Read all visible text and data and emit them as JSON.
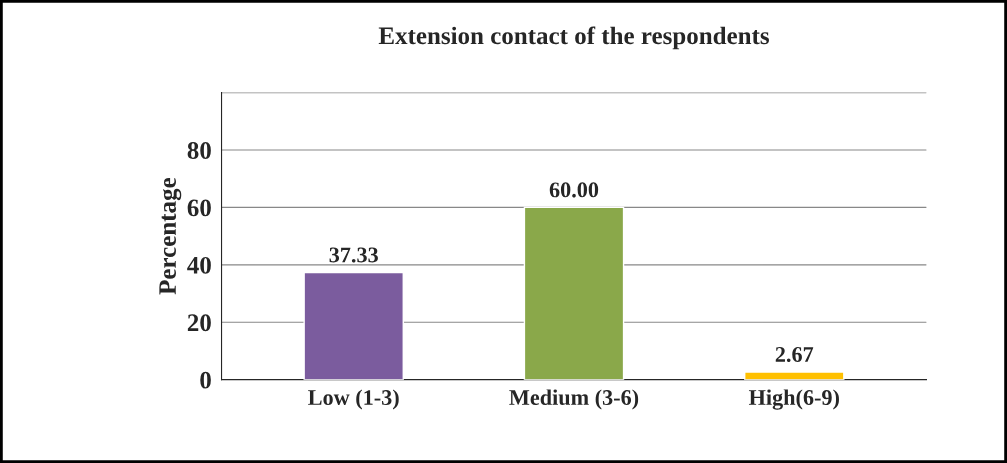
{
  "chart_data": {
    "type": "bar",
    "title": "Extension contact of the respondents",
    "ylabel": "Percentage",
    "categories": [
      "Low (1-3)",
      "Medium (3-6)",
      "High(6-9)"
    ],
    "values": [
      37.33,
      60.0,
      2.67
    ],
    "colors": [
      "#7b5c9e",
      "#8aa84a",
      "#ffc000"
    ],
    "value_labels": [
      "37.33",
      "60.00",
      "2.67"
    ],
    "ylim": [
      0,
      100
    ],
    "yticks": [
      0,
      20,
      40,
      60,
      80,
      {
        "value": 100,
        "label": null
      }
    ],
    "grid": "y",
    "legend": false
  }
}
